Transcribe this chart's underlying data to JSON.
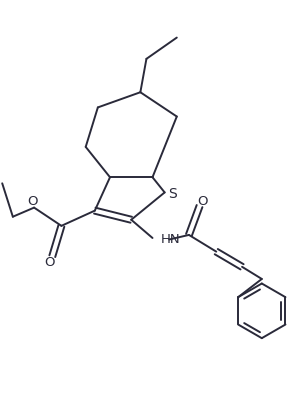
{
  "bg_color": "#ffffff",
  "line_color": "#2a2a3a",
  "line_width": 1.4,
  "figsize": [
    3.05,
    3.97
  ],
  "dpi": 100,
  "xlim": [
    0,
    10
  ],
  "ylim": [
    0,
    13
  ]
}
